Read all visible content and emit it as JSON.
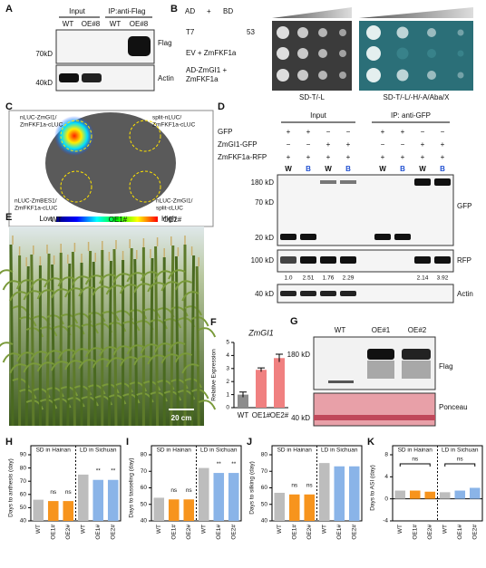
{
  "panels": {
    "A": {
      "letter": "A",
      "headers": [
        "Input",
        "IP:anti-Flag"
      ],
      "lanes": [
        "WT",
        "OE#8",
        "WT",
        "OE#8"
      ],
      "markers": [
        "70kD",
        "40kD"
      ],
      "bands": [
        "Flag",
        "Actin"
      ]
    },
    "B": {
      "letter": "B",
      "ad": "AD",
      "plus": "+",
      "bd": "BD",
      "rows": [
        [
          "T7",
          "53"
        ],
        [
          "EV + ZmFKF1a"
        ],
        [
          "AD-ZmGI1 +",
          "ZmFKF1a"
        ]
      ],
      "media": [
        "SD-T/-L",
        "SD-T/-L/-H/-A/Aba/X"
      ]
    },
    "C": {
      "letter": "C",
      "spots": [
        [
          "nLUC-ZmGI1/",
          "ZmFKF1a-cLUC"
        ],
        [
          "split-nLUC/",
          "ZmFKF1a-cLUC"
        ],
        [
          "nLUC-ZmBES1/",
          "ZmFKF1a-cLUC"
        ],
        [
          "nLUC-ZmGI1/",
          "split-cLUC"
        ]
      ],
      "low": "Low",
      "high": "High"
    },
    "D": {
      "letter": "D",
      "headers": [
        "Input",
        "IP: anti-GFP"
      ],
      "rows": [
        {
          "label": "GFP",
          "signs": [
            "+",
            "+",
            "−",
            "−",
            "+",
            "+",
            "−",
            "−"
          ]
        },
        {
          "label": "ZmGI1-GFP",
          "signs": [
            "−",
            "−",
            "+",
            "+",
            "−",
            "−",
            "+",
            "+"
          ]
        },
        {
          "label": "ZmFKF1a-RFP",
          "signs": [
            "+",
            "+",
            "+",
            "+",
            "+",
            "+",
            "+",
            "+"
          ]
        }
      ],
      "light": [
        "W",
        "B",
        "W",
        "B",
        "W",
        "B",
        "W",
        "B"
      ],
      "markers": [
        "180 kD",
        "70 kD",
        "20 kD",
        "100 kD",
        "40 kD"
      ],
      "bands": [
        "GFP",
        "RFP",
        "Actin"
      ],
      "ratios": [
        "1.0",
        "2.51",
        "1.76",
        "2.29",
        "2.14",
        "3.92"
      ]
    },
    "E": {
      "letter": "E",
      "labels": [
        "WT",
        "OE1#",
        "OE2#"
      ],
      "scale": "20 cm"
    },
    "G": {
      "letter": "G",
      "lanes": [
        "WT",
        "OE#1",
        "OE#2"
      ],
      "markers": [
        "180 kD",
        "40 kD"
      ],
      "bands": [
        "Flag",
        "Ponceau"
      ]
    }
  },
  "chart_data": [
    {
      "type": "bar",
      "letter": "F",
      "title": "ZmGI1",
      "ylabel": "Relative Expression",
      "categories": [
        "WT",
        "OE1#",
        "OE2#"
      ],
      "values": [
        1.0,
        2.9,
        3.8
      ],
      "errors": [
        0.2,
        0.15,
        0.3
      ],
      "colors": [
        "#8c8c8c",
        "#f08080",
        "#f08080"
      ],
      "ylim": [
        0,
        5
      ],
      "yticks": [
        0,
        1,
        2,
        3,
        4,
        5
      ]
    },
    {
      "type": "bar",
      "letter": "H",
      "ylabel": "Days to anthesis (day)",
      "groups": [
        "SD in Hainan",
        "LD in Sichuan"
      ],
      "categories": [
        "WT",
        "OE1#",
        "OE2#",
        "WT",
        "OE1#",
        "OE2#"
      ],
      "values": [
        56,
        55,
        55,
        75,
        71,
        71
      ],
      "annotations": [
        null,
        "ns",
        "ns",
        null,
        "**",
        "**"
      ],
      "colors": [
        "#bdbdbd",
        "#f7941d",
        "#f7941d",
        "#bdbdbd",
        "#8ab4e8",
        "#8ab4e8"
      ],
      "ylim": [
        40,
        90
      ],
      "yticks": [
        40,
        50,
        60,
        70,
        80,
        90
      ]
    },
    {
      "type": "bar",
      "letter": "I",
      "ylabel": "Days to tasseling (day)",
      "groups": [
        "SD in Hainan",
        "LD in Sichuan"
      ],
      "categories": [
        "WT",
        "OE1#",
        "OE2#",
        "WT",
        "OE1#",
        "OE2#"
      ],
      "values": [
        54,
        53,
        53,
        72,
        69,
        69
      ],
      "annotations": [
        null,
        "ns",
        "ns",
        null,
        "**",
        "**"
      ],
      "colors": [
        "#bdbdbd",
        "#f7941d",
        "#f7941d",
        "#bdbdbd",
        "#8ab4e8",
        "#8ab4e8"
      ],
      "ylim": [
        40,
        80
      ],
      "yticks": [
        40,
        50,
        60,
        70,
        80
      ]
    },
    {
      "type": "bar",
      "letter": "J",
      "ylabel": "Days to silking (day)",
      "groups": [
        "SD in Hainan",
        "LD in Sichuan"
      ],
      "categories": [
        "WT",
        "OE1#",
        "OE2#",
        "WT",
        "OE1#",
        "OE2#"
      ],
      "values": [
        57,
        56,
        56,
        75,
        73,
        73
      ],
      "annotations": [
        null,
        "ns",
        "ns",
        null,
        null,
        null
      ],
      "colors": [
        "#bdbdbd",
        "#f7941d",
        "#f7941d",
        "#bdbdbd",
        "#8ab4e8",
        "#8ab4e8"
      ],
      "ylim": [
        40,
        80
      ],
      "yticks": [
        40,
        50,
        60,
        70,
        80
      ]
    },
    {
      "type": "bar",
      "letter": "K",
      "ylabel": "Days to ASI (day)",
      "groups": [
        "SD in Hainan",
        "LD in Sichuan"
      ],
      "categories": [
        "WT",
        "OE1#",
        "OE2#",
        "WT",
        "OE1#",
        "OE2#"
      ],
      "values": [
        1.5,
        1.5,
        1.3,
        1.2,
        1.5,
        2.0
      ],
      "group_annotations": [
        "ns",
        "ns"
      ],
      "colors": [
        "#bdbdbd",
        "#f7941d",
        "#f7941d",
        "#bdbdbd",
        "#8ab4e8",
        "#8ab4e8"
      ],
      "ylim": [
        -4,
        8
      ],
      "yticks": [
        -4,
        0,
        4,
        8
      ]
    }
  ]
}
